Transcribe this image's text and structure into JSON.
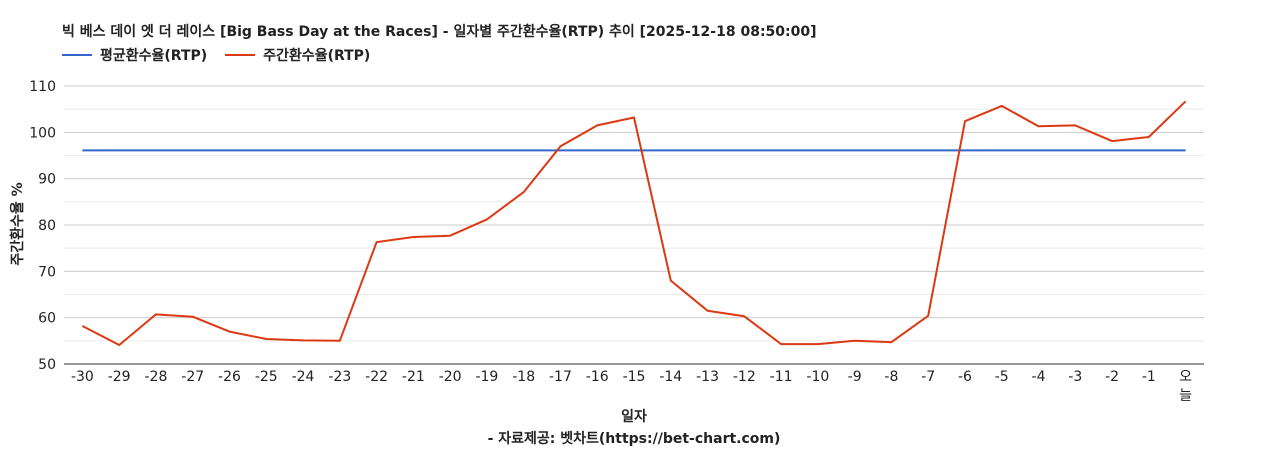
{
  "chart_data": {
    "type": "line",
    "title": "빅 베스 데이 엣 더 레이스 [Big Bass Day at the Races] - 일자별 주간환수율(RTP) 추이 [2025-12-18 08:50:00]",
    "xlabel": "일자",
    "ylabel": "주간환수율 %",
    "source": "- 자료제공: 벳차트(https://bet-chart.com)",
    "ylim": [
      50,
      110
    ],
    "yticks": [
      "50",
      "60",
      "70",
      "80",
      "90",
      "100",
      "110"
    ],
    "grid": true,
    "legend_position": "top-left",
    "categories": [
      "-30",
      "-29",
      "-28",
      "-27",
      "-26",
      "-25",
      "-24",
      "-23",
      "-22",
      "-21",
      "-20",
      "-19",
      "-18",
      "-17",
      "-16",
      "-15",
      "-14",
      "-13",
      "-12",
      "-11",
      "-10",
      "-9",
      "-8",
      "-7",
      "-6",
      "-5",
      "-4",
      "-3",
      "-2",
      "-1",
      "오늘"
    ],
    "series": [
      {
        "name": "평균환수율(RTP)",
        "color": "#3366cc",
        "values": [
          96.1,
          96.1,
          96.1,
          96.1,
          96.1,
          96.1,
          96.1,
          96.1,
          96.1,
          96.1,
          96.1,
          96.1,
          96.1,
          96.1,
          96.1,
          96.1,
          96.1,
          96.1,
          96.1,
          96.1,
          96.1,
          96.1,
          96.1,
          96.1,
          96.1,
          96.1,
          96.1,
          96.1,
          96.1,
          96.1,
          96.1
        ]
      },
      {
        "name": "주간환수율(RTP)",
        "color": "#dc3912",
        "values": [
          58.2,
          54.1,
          60.7,
          60.2,
          57.0,
          55.4,
          55.1,
          55.0,
          76.3,
          77.4,
          77.7,
          81.2,
          87.1,
          97.0,
          101.5,
          103.2,
          68.0,
          61.5,
          60.3,
          54.3,
          54.3,
          55.0,
          54.7,
          60.4,
          102.4,
          105.7,
          101.3,
          101.5,
          98.1,
          99.0,
          106.7
        ]
      }
    ]
  }
}
